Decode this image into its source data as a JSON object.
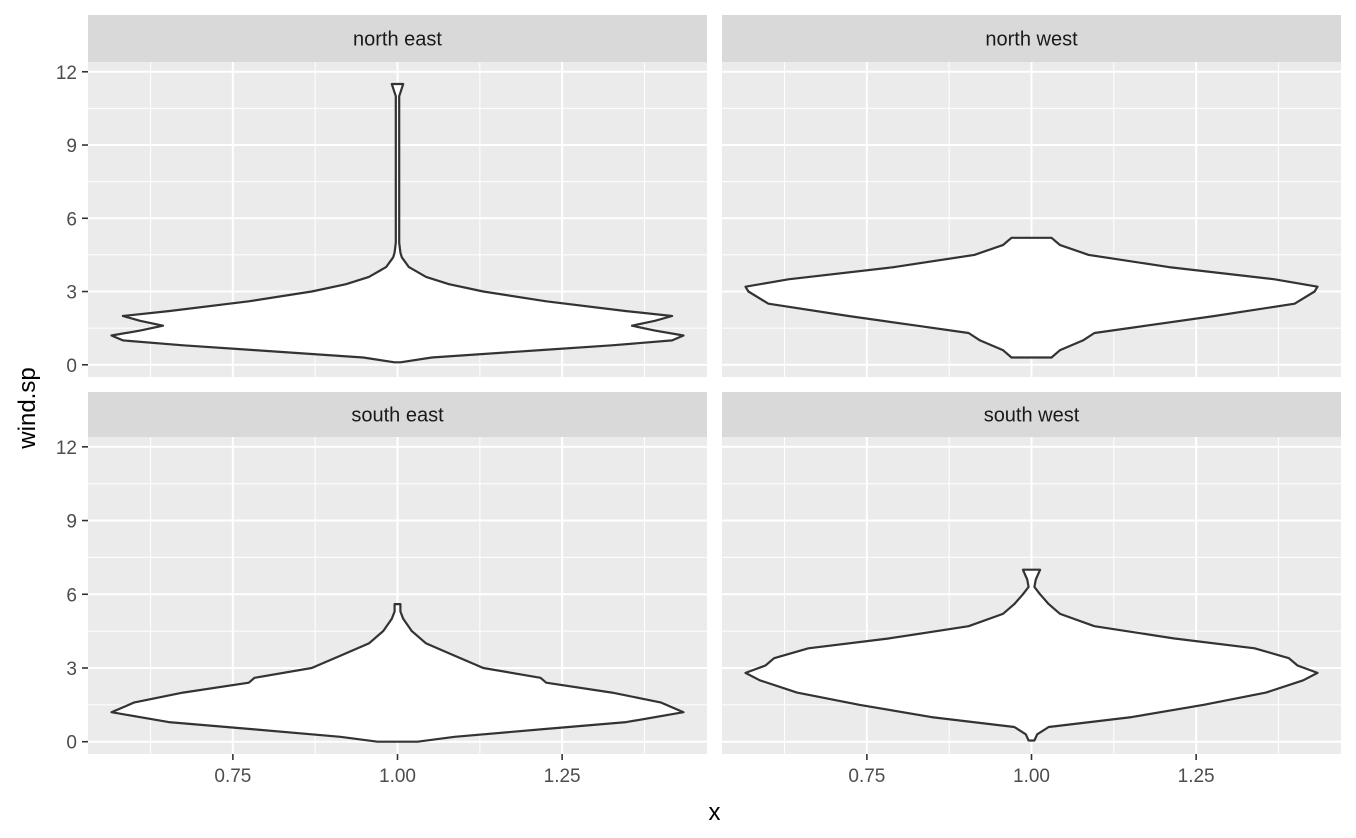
{
  "chart_data": {
    "type": "violin",
    "xlabel": "x",
    "ylabel": "wind.sp",
    "xlim": [
      0.53,
      1.47
    ],
    "ylim": [
      -0.5,
      12.4
    ],
    "x_ticks": [
      0.75,
      1.0,
      1.25
    ],
    "x_tick_labels": [
      "0.75",
      "1.00",
      "1.25"
    ],
    "y_ticks": [
      0,
      3,
      6,
      9,
      12
    ],
    "y_tick_labels": [
      "0",
      "3",
      "6",
      "9",
      "12"
    ],
    "grid": true,
    "panels": [
      {
        "label": "north east",
        "x_center": 1.0,
        "profile": [
          [
            0.1,
            0.01
          ],
          [
            0.3,
            0.12
          ],
          [
            0.6,
            0.5
          ],
          [
            0.8,
            0.75
          ],
          [
            1.0,
            0.96
          ],
          [
            1.2,
            1.0
          ],
          [
            1.4,
            0.9
          ],
          [
            1.6,
            0.82
          ],
          [
            1.8,
            0.9
          ],
          [
            2.0,
            0.96
          ],
          [
            2.2,
            0.8
          ],
          [
            2.6,
            0.52
          ],
          [
            3.0,
            0.3
          ],
          [
            3.3,
            0.18
          ],
          [
            3.6,
            0.1
          ],
          [
            4.0,
            0.04
          ],
          [
            4.4,
            0.015
          ],
          [
            4.6,
            0.01
          ],
          [
            5.0,
            0.006
          ],
          [
            11.0,
            0.006
          ],
          [
            11.5,
            0.02
          ]
        ]
      },
      {
        "label": "north west",
        "x_center": 1.0,
        "profile": [
          [
            0.3,
            0.07
          ],
          [
            0.6,
            0.1
          ],
          [
            1.0,
            0.18
          ],
          [
            1.3,
            0.22
          ],
          [
            1.6,
            0.4
          ],
          [
            2.0,
            0.64
          ],
          [
            2.5,
            0.92
          ],
          [
            3.0,
            0.99
          ],
          [
            3.2,
            1.0
          ],
          [
            3.5,
            0.85
          ],
          [
            4.0,
            0.48
          ],
          [
            4.5,
            0.2
          ],
          [
            4.9,
            0.1
          ],
          [
            5.2,
            0.07
          ]
        ]
      },
      {
        "label": "south east",
        "x_center": 1.0,
        "profile": [
          [
            0.0,
            0.07
          ],
          [
            0.2,
            0.2
          ],
          [
            0.5,
            0.5
          ],
          [
            0.8,
            0.8
          ],
          [
            1.2,
            1.0
          ],
          [
            1.6,
            0.92
          ],
          [
            2.0,
            0.75
          ],
          [
            2.4,
            0.52
          ],
          [
            2.6,
            0.5
          ],
          [
            3.0,
            0.3
          ],
          [
            3.5,
            0.2
          ],
          [
            4.0,
            0.1
          ],
          [
            4.5,
            0.05
          ],
          [
            5.0,
            0.02
          ],
          [
            5.3,
            0.01
          ],
          [
            5.6,
            0.01
          ]
        ]
      },
      {
        "label": "south west",
        "x_center": 1.0,
        "profile": [
          [
            0.05,
            0.01
          ],
          [
            0.3,
            0.02
          ],
          [
            0.6,
            0.06
          ],
          [
            1.0,
            0.35
          ],
          [
            1.5,
            0.6
          ],
          [
            2.0,
            0.82
          ],
          [
            2.5,
            0.95
          ],
          [
            2.8,
            1.0
          ],
          [
            3.1,
            0.93
          ],
          [
            3.4,
            0.9
          ],
          [
            3.8,
            0.78
          ],
          [
            4.2,
            0.5
          ],
          [
            4.7,
            0.22
          ],
          [
            5.2,
            0.1
          ],
          [
            5.6,
            0.06
          ],
          [
            6.0,
            0.03
          ],
          [
            6.3,
            0.01
          ],
          [
            6.6,
            0.015
          ],
          [
            7.0,
            0.03
          ]
        ]
      }
    ]
  }
}
